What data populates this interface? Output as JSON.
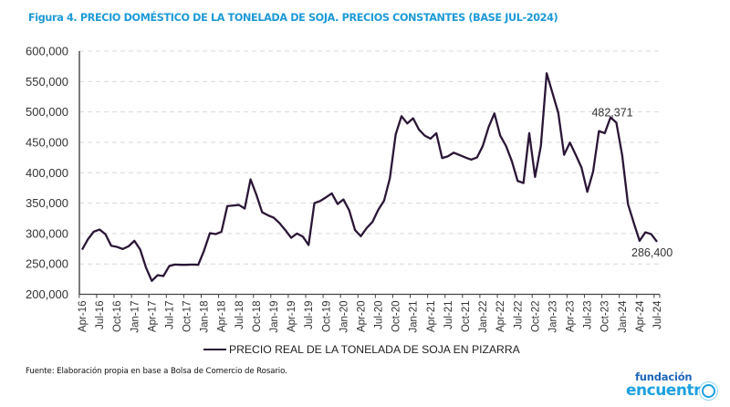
{
  "title": "Figura 4. PRECIO DOMÉSTICO DE LA TONELADA DE SOJA. PRECIOS CONSTANTES (BASE JUL-2024)",
  "source": "Fuente: Elaboración propia en base a Bolsa de Comercio de Rosario.",
  "logo": {
    "top": "fundación",
    "bottom": "encuentr",
    "icon": "sun-o-icon"
  },
  "colors": {
    "title": "#1d9ad6",
    "line": "#2b1637",
    "grid": "#d9d9d9",
    "logo_dark": "#1f66b8",
    "logo_light": "#1da1e0"
  },
  "chart_data": {
    "type": "line",
    "title": "PRECIO DOMÉSTICO DE LA TONELADA DE SOJA. PRECIOS CONSTANTES (BASE JUL-2024)",
    "xlabel": "",
    "ylabel": "",
    "ylim": [
      200000,
      600000
    ],
    "yticks": [
      200000,
      250000,
      300000,
      350000,
      400000,
      450000,
      500000,
      550000,
      600000
    ],
    "ytick_labels": [
      "200,000",
      "250,000",
      "300,000",
      "350,000",
      "400,000",
      "450,000",
      "500,000",
      "550,000",
      "600,000"
    ],
    "grid": "horizontal-dashed",
    "legend_position": "bottom-center",
    "x_start": "Apr-16",
    "x_end": "Jul-24",
    "frequency": "monthly",
    "xtick_labels": [
      "Apr-16",
      "Jul-16",
      "Oct-16",
      "Jan-17",
      "Apr-17",
      "Jul-17",
      "Oct-17",
      "Jan-18",
      "Apr-18",
      "Jul-18",
      "Oct-18",
      "Jan-19",
      "Apr-19",
      "Jul-19",
      "Oct-19",
      "Jan-20",
      "Apr-20",
      "Jul-20",
      "Oct-20",
      "Jan-21",
      "Apr-21",
      "Jul-21",
      "Oct-21",
      "Jan-22",
      "Apr-22",
      "Jul-22",
      "Oct-22",
      "Jan-23",
      "Apr-23",
      "Jul-23",
      "Oct-23",
      "Jan-24",
      "Apr-24",
      "Jul-24"
    ],
    "series": [
      {
        "name": "PRECIO REAL DE LA TONELADA DE SOJA EN PIZARRA",
        "values": [
          273500,
          290500,
          303000,
          306500,
          299000,
          280000,
          278000,
          274500,
          279000,
          288000,
          273500,
          244000,
          222000,
          231500,
          230000,
          246500,
          249000,
          248500,
          248500,
          249000,
          248500,
          272000,
          300500,
          299000,
          303000,
          345000,
          346000,
          347000,
          341000,
          389000,
          364000,
          335000,
          330000,
          326000,
          317000,
          305500,
          293000,
          300000,
          295000,
          281000,
          350000,
          353500,
          359500,
          366000,
          348500,
          356000,
          338000,
          305500,
          295500,
          309000,
          319000,
          339000,
          354000,
          391000,
          463000,
          493000,
          481000,
          489500,
          471000,
          461000,
          456000,
          465000,
          424000,
          427000,
          433000,
          429000,
          425000,
          421500,
          425000,
          444000,
          475000,
          497500,
          461000,
          444000,
          419000,
          386500,
          383000,
          465000,
          393000,
          444000,
          563500,
          531000,
          498500,
          429500,
          449500,
          429500,
          408500,
          368500,
          402000,
          468500,
          465000,
          491000,
          482371,
          429000,
          348500,
          317500,
          288000,
          302000,
          299000,
          286400
        ]
      }
    ],
    "annotations": [
      {
        "label": "482,371",
        "month": "Dec-23",
        "value": 482371
      },
      {
        "label": "286,400",
        "month": "Jul-24",
        "value": 286400
      }
    ]
  }
}
